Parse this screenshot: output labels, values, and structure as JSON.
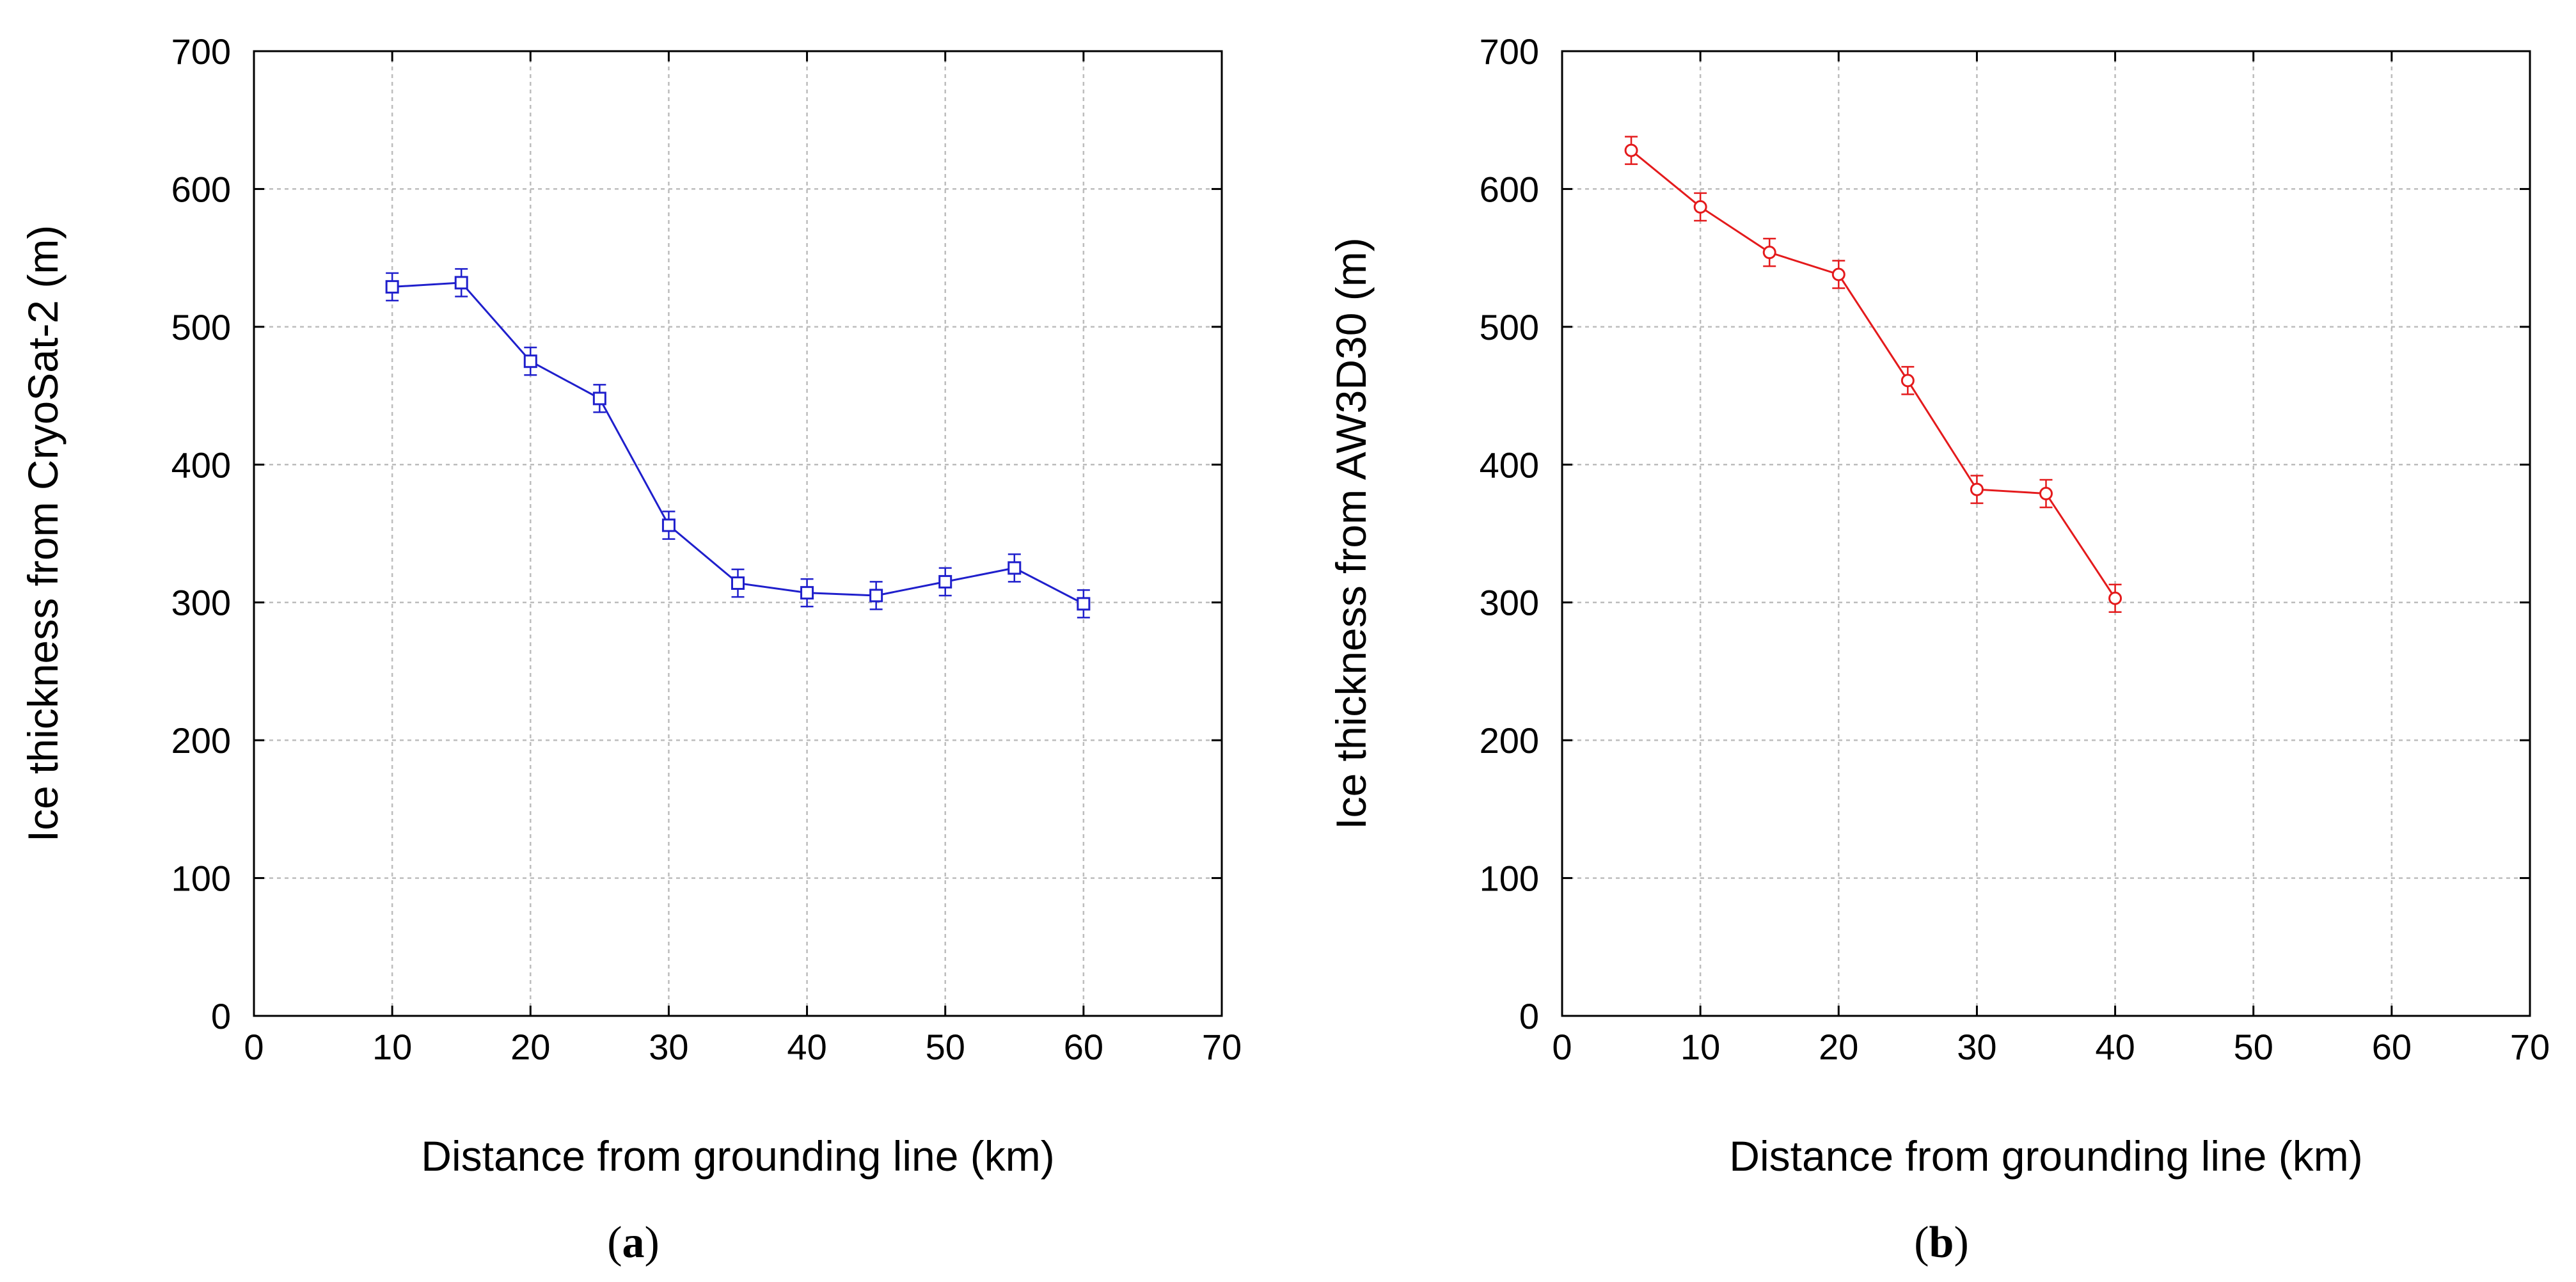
{
  "chart_data": [
    {
      "type": "line",
      "panel_label": "a",
      "title": "",
      "xlabel": "Distance from grounding line (km)",
      "ylabel": "Ice thickness from CryoSat-2 (m)",
      "xlim": [
        0,
        70
      ],
      "ylim": [
        0,
        700
      ],
      "xticks": [
        "0",
        "10",
        "20",
        "30",
        "40",
        "50",
        "60",
        "70"
      ],
      "yticks": [
        "0",
        "100",
        "200",
        "300",
        "400",
        "500",
        "600",
        "700"
      ],
      "grid": true,
      "series": [
        {
          "name": "CryoSat-2",
          "color": "#1f1fcc",
          "marker": "square",
          "x": [
            10,
            15,
            20,
            25,
            30,
            35,
            40,
            45,
            50,
            55,
            60
          ],
          "values": [
            529,
            532,
            475,
            448,
            356,
            314,
            307,
            305,
            315,
            325,
            299
          ],
          "error": [
            10,
            10,
            10,
            10,
            10,
            10,
            10,
            10,
            10,
            10,
            10
          ]
        }
      ]
    },
    {
      "type": "line",
      "panel_label": "b",
      "title": "",
      "xlabel": "Distance from grounding line (km)",
      "ylabel": "Ice thickness from AW3D30 (m)",
      "xlim": [
        0,
        70
      ],
      "ylim": [
        0,
        700
      ],
      "xticks": [
        "0",
        "10",
        "20",
        "30",
        "40",
        "50",
        "60",
        "70"
      ],
      "yticks": [
        "0",
        "100",
        "200",
        "300",
        "400",
        "500",
        "600",
        "700"
      ],
      "grid": true,
      "series": [
        {
          "name": "AW3D30",
          "color": "#e41a1c",
          "marker": "circle",
          "x": [
            5,
            10,
            15,
            20,
            25,
            30,
            35,
            40
          ],
          "values": [
            628,
            587,
            554,
            538,
            461,
            382,
            379,
            303
          ],
          "error": [
            10,
            10,
            10,
            10,
            10,
            10,
            10,
            10
          ]
        }
      ]
    }
  ]
}
